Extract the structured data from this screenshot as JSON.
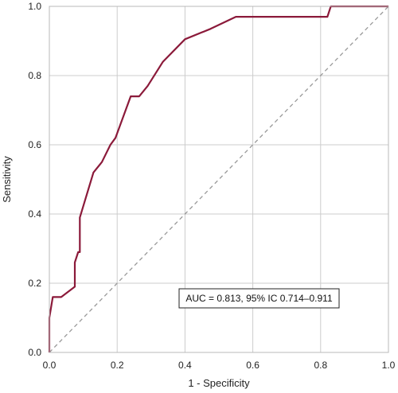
{
  "chart_data": {
    "type": "line",
    "title": "",
    "xlabel": "1 - Specificity",
    "ylabel": "Sensitivity",
    "xlim": [
      0,
      1
    ],
    "ylim": [
      0,
      1
    ],
    "grid": true,
    "x_ticks": [
      "0.0",
      "0.2",
      "0.4",
      "0.6",
      "0.8",
      "1.0"
    ],
    "y_ticks": [
      "0.0",
      "0.2",
      "0.4",
      "0.6",
      "0.8",
      "1.0"
    ],
    "annotation": "AUC = 0.813, 95% IC 0.714–0.911",
    "series": [
      {
        "color": "#8b1a3a",
        "x": [
          0.0,
          0.0,
          0.01,
          0.01,
          0.035,
          0.075,
          0.075,
          0.085,
          0.085,
          0.09,
          0.09,
          0.13,
          0.155,
          0.18,
          0.195,
          0.24,
          0.24,
          0.265,
          0.29,
          0.335,
          0.4,
          0.475,
          0.55,
          0.82,
          0.83,
          0.83,
          1.0
        ],
        "y": [
          0.0,
          0.1,
          0.16,
          0.16,
          0.16,
          0.19,
          0.26,
          0.29,
          0.29,
          0.29,
          0.39,
          0.52,
          0.55,
          0.6,
          0.62,
          0.74,
          0.74,
          0.74,
          0.77,
          0.84,
          0.905,
          0.935,
          0.97,
          0.97,
          1.0,
          1.0,
          1.0
        ]
      }
    ],
    "reference_line": {
      "color": "#999999",
      "x": [
        0,
        1
      ],
      "y": [
        0,
        1
      ]
    },
    "colors": {
      "grid": "#cccccc",
      "frame": "#b8b8b8"
    }
  }
}
